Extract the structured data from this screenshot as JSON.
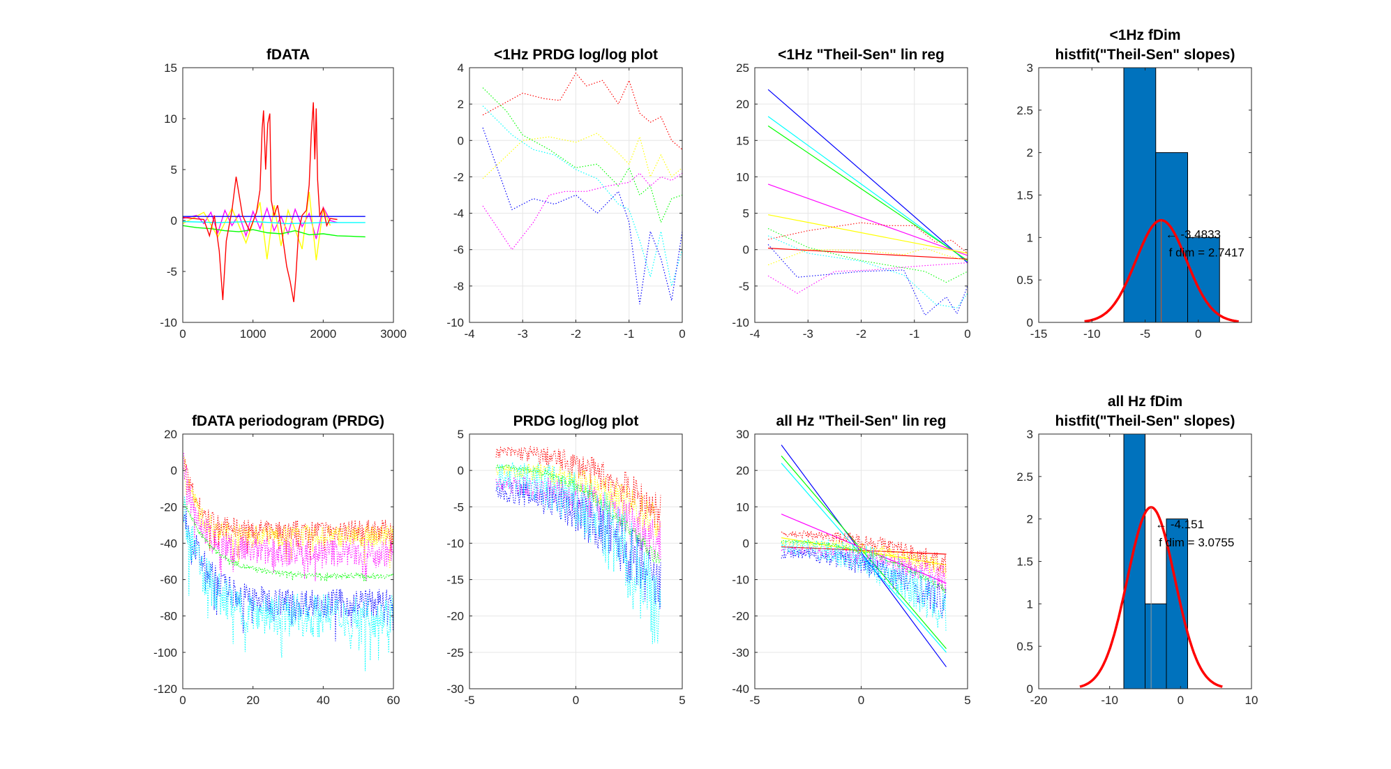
{
  "colors": {
    "red": "#ff0000",
    "yellow": "#ffff00",
    "green": "#00ff00",
    "cyan": "#00ffff",
    "blue": "#0000ff",
    "magenta": "#ff00ff",
    "bar": "#0072bd",
    "fit": "#ff0000",
    "grid": "#e6e6e6",
    "axis": "#262626"
  },
  "chart_data": [
    {
      "type": "line",
      "id": "p1",
      "title": [
        "fDATA"
      ],
      "xlim": [
        0,
        3000
      ],
      "ylim": [
        -10,
        15
      ],
      "xticks": [
        0,
        1000,
        2000,
        3000
      ],
      "yticks": [
        -10,
        -5,
        0,
        5,
        10,
        15
      ],
      "grid": false,
      "line_style": "solid",
      "series": [
        {
          "color": "magenta",
          "x": [
            0,
            200,
            300,
            400,
            500,
            600,
            700,
            800,
            900,
            1000,
            1100,
            1200,
            1300,
            1400,
            1500,
            1600,
            1700,
            1800,
            1900,
            2000,
            2100,
            2200
          ],
          "y": [
            0.2,
            0.5,
            -0.3,
            0.8,
            -1.2,
            1.0,
            -0.5,
            0.6,
            -1.5,
            0.9,
            -0.8,
            1.2,
            -1.0,
            0.4,
            -1.3,
            1.1,
            -0.6,
            0.7,
            -1.8,
            1.3,
            0.0,
            -0.2
          ]
        },
        {
          "color": "yellow",
          "x": [
            0,
            300,
            500,
            700,
            900,
            1100,
            1200,
            1300,
            1400,
            1500,
            1700,
            1800,
            1900,
            2000,
            2100
          ],
          "y": [
            -0.3,
            0.8,
            -1.6,
            1.2,
            -2.2,
            1.8,
            -3.8,
            1.5,
            -2.5,
            1.0,
            -2.8,
            2.8,
            -3.9,
            1.2,
            -0.5
          ]
        },
        {
          "color": "green",
          "x": [
            0,
            200,
            400,
            600,
            800,
            1000,
            1200,
            1400,
            1600,
            1800,
            2000,
            2200,
            2400,
            2600
          ],
          "y": [
            -0.5,
            -0.7,
            -0.8,
            -1.0,
            -1.1,
            -0.9,
            -1.2,
            -1.3,
            -1.0,
            -1.4,
            -1.3,
            -1.5,
            -1.55,
            -1.6
          ]
        },
        {
          "color": "cyan",
          "x": [
            0,
            500,
            1000,
            1500,
            2000,
            2600
          ],
          "y": [
            -0.1,
            -0.2,
            -0.1,
            -0.3,
            -0.2,
            -0.2
          ]
        },
        {
          "color": "blue",
          "x": [
            0,
            2600
          ],
          "y": [
            0.4,
            0.4
          ]
        },
        {
          "color": "red",
          "x": [
            0,
            150,
            300,
            380,
            450,
            520,
            570,
            620,
            700,
            760,
            850,
            950,
            1050,
            1100,
            1130,
            1150,
            1180,
            1210,
            1240,
            1260,
            1300,
            1350,
            1420,
            1480,
            1530,
            1580,
            1610,
            1650,
            1700,
            1760,
            1800,
            1830,
            1860,
            1880,
            1900,
            1920,
            1950,
            2000,
            2050,
            2100,
            2200
          ],
          "y": [
            0.3,
            0.2,
            0.1,
            -1.5,
            0.5,
            -3.0,
            -7.8,
            -2.0,
            1.0,
            4.3,
            0.5,
            -1.0,
            0.8,
            3.0,
            9.0,
            10.8,
            5.0,
            9.5,
            10.5,
            2.0,
            0.5,
            1.5,
            -1.5,
            -4.5,
            -6.0,
            -8.0,
            -5.5,
            -1.0,
            0.5,
            1.0,
            3.5,
            8.5,
            11.6,
            6.0,
            11.0,
            4.0,
            0.5,
            1.2,
            -0.5,
            0.2,
            0.1
          ]
        }
      ]
    },
    {
      "type": "line",
      "id": "p2",
      "title": [
        "<1Hz PRDG log/log plot"
      ],
      "xlim": [
        -4,
        0
      ],
      "ylim": [
        -10,
        4
      ],
      "xticks": [
        -4,
        -3,
        -2,
        -1,
        0
      ],
      "yticks": [
        -10,
        -8,
        -6,
        -4,
        -2,
        0,
        2,
        4
      ],
      "grid": true,
      "line_style": "dotted",
      "series": [
        {
          "color": "red",
          "x": [
            -3.75,
            -3.0,
            -2.6,
            -2.3,
            -2.0,
            -1.8,
            -1.5,
            -1.2,
            -1.0,
            -0.8,
            -0.6,
            -0.4,
            -0.2,
            0
          ],
          "y": [
            1.4,
            2.6,
            2.3,
            2.2,
            3.7,
            3.0,
            3.3,
            2.0,
            3.3,
            1.5,
            1.0,
            1.3,
            0.0,
            -0.5
          ]
        },
        {
          "color": "yellow",
          "x": [
            -3.75,
            -3.0,
            -2.5,
            -2.0,
            -1.6,
            -1.2,
            -1.0,
            -0.8,
            -0.6,
            -0.4,
            -0.2,
            0
          ],
          "y": [
            -2.1,
            0.0,
            0.2,
            -0.1,
            0.4,
            -0.7,
            -1.3,
            0.2,
            -2.0,
            -0.8,
            -2.0,
            -1.5
          ]
        },
        {
          "color": "green",
          "x": [
            -3.75,
            -3.3,
            -3.0,
            -2.5,
            -2.0,
            -1.6,
            -1.2,
            -1.0,
            -0.8,
            -0.6,
            -0.4,
            -0.2,
            0
          ],
          "y": [
            2.9,
            1.6,
            0.3,
            -0.5,
            -1.5,
            -1.3,
            -2.5,
            -1.5,
            -3.0,
            -2.5,
            -4.5,
            -3.2,
            -3.0
          ]
        },
        {
          "color": "cyan",
          "x": [
            -3.75,
            -3.2,
            -2.8,
            -2.4,
            -2.0,
            -1.6,
            -1.2,
            -1.0,
            -0.8,
            -0.6,
            -0.4,
            -0.2,
            0
          ],
          "y": [
            1.9,
            0.3,
            -0.5,
            -0.8,
            -1.6,
            -2.1,
            -3.5,
            -3.8,
            -5.5,
            -7.5,
            -5.0,
            -8.0,
            -6.0
          ]
        },
        {
          "color": "blue",
          "x": [
            -3.75,
            -3.2,
            -2.8,
            -2.4,
            -2.0,
            -1.6,
            -1.2,
            -1.0,
            -0.8,
            -0.6,
            -0.4,
            -0.2,
            0
          ],
          "y": [
            0.7,
            -3.8,
            -3.2,
            -3.5,
            -3.0,
            -4.0,
            -2.8,
            -4.5,
            -9.0,
            -5.0,
            -6.5,
            -8.8,
            -5.0
          ]
        },
        {
          "color": "magenta",
          "x": [
            -3.75,
            -3.2,
            -2.8,
            -2.5,
            -2.2,
            -1.8,
            -1.4,
            -1.0,
            -0.8,
            -0.6,
            -0.4,
            -0.2,
            0
          ],
          "y": [
            -3.6,
            -6.0,
            -4.5,
            -3.0,
            -2.8,
            -2.8,
            -2.5,
            -2.3,
            -1.8,
            -2.5,
            -2.0,
            -2.2,
            -1.8
          ]
        }
      ]
    },
    {
      "type": "line",
      "id": "p3",
      "title": [
        "<1Hz \"Theil-Sen\" lin reg"
      ],
      "xlim": [
        -4,
        0
      ],
      "ylim": [
        -10,
        25
      ],
      "xticks": [
        -4,
        -3,
        -2,
        -1,
        0
      ],
      "yticks": [
        -10,
        -5,
        0,
        5,
        10,
        15,
        20,
        25
      ],
      "grid": true,
      "line_style": "solid",
      "series": [
        {
          "color": "blue",
          "x": [
            -3.75,
            0
          ],
          "y": [
            22.0,
            -1.8
          ]
        },
        {
          "color": "cyan",
          "x": [
            -3.75,
            0
          ],
          "y": [
            18.3,
            -1.6
          ]
        },
        {
          "color": "green",
          "x": [
            -3.75,
            0
          ],
          "y": [
            17.0,
            -1.5
          ]
        },
        {
          "color": "magenta",
          "x": [
            -3.75,
            0
          ],
          "y": [
            9.0,
            -0.8
          ]
        },
        {
          "color": "yellow",
          "x": [
            -3.75,
            0
          ],
          "y": [
            4.8,
            -0.5
          ]
        },
        {
          "color": "red",
          "x": [
            -3.75,
            0
          ],
          "y": [
            0.2,
            -1.3
          ]
        }
      ],
      "dotted_series": [
        {
          "color": "red",
          "x": [
            -3.75,
            -3.0,
            -2.0,
            -1.5,
            -1.0,
            -0.6,
            -0.3,
            0
          ],
          "y": [
            1.4,
            2.6,
            3.7,
            3.3,
            3.3,
            1.0,
            1.3,
            -0.5
          ]
        },
        {
          "color": "yellow",
          "x": [
            -3.75,
            -3.0,
            -2.0,
            -1.2,
            -0.8,
            -0.4,
            0
          ],
          "y": [
            -2.1,
            0.0,
            -0.1,
            -0.7,
            0.2,
            -0.8,
            -1.5
          ]
        },
        {
          "color": "green",
          "x": [
            -3.75,
            -3.0,
            -2.0,
            -1.2,
            -0.8,
            -0.4,
            0
          ],
          "y": [
            2.9,
            0.3,
            -1.5,
            -2.5,
            -3.0,
            -4.5,
            -3.0
          ]
        },
        {
          "color": "cyan",
          "x": [
            -3.75,
            -3.0,
            -2.0,
            -1.2,
            -0.6,
            -0.2,
            0
          ],
          "y": [
            1.9,
            -0.5,
            -1.6,
            -3.5,
            -7.5,
            -8.0,
            -6.0
          ]
        },
        {
          "color": "blue",
          "x": [
            -3.75,
            -3.2,
            -2.0,
            -1.2,
            -0.8,
            -0.4,
            -0.2,
            0
          ],
          "y": [
            0.7,
            -3.8,
            -3.0,
            -2.8,
            -9.0,
            -6.5,
            -8.8,
            -5.0
          ]
        },
        {
          "color": "magenta",
          "x": [
            -3.75,
            -3.2,
            -2.5,
            -1.8,
            -1.0,
            -0.4,
            0
          ],
          "y": [
            -3.6,
            -6.0,
            -3.0,
            -2.8,
            -2.3,
            -2.0,
            -1.8
          ]
        }
      ]
    },
    {
      "type": "bar",
      "id": "p4",
      "title": [
        "<1Hz fDim",
        "histfit(\"Theil-Sen\" slopes)"
      ],
      "xlim": [
        -15,
        5
      ],
      "ylim": [
        0,
        3
      ],
      "xticks": [
        -15,
        -10,
        -5,
        0
      ],
      "yticks": [
        0,
        0.5,
        1,
        1.5,
        2,
        2.5,
        3
      ],
      "grid": false,
      "bins": [
        {
          "x0": -7.0,
          "x1": -4.0,
          "count": 3
        },
        {
          "x0": -4.0,
          "x1": -1.0,
          "count": 2
        },
        {
          "x0": -1.0,
          "x1": 2.0,
          "count": 1
        }
      ],
      "fit": {
        "mean": -3.4833,
        "sd": 2.38,
        "scale": 7.18,
        "x_from": -10.7,
        "x_to": 3.8
      },
      "marker_x": -3.4833,
      "annotation": [
        "← -3.4833",
        "f dim = 2.7417"
      ]
    },
    {
      "type": "line",
      "id": "p5",
      "title": [
        "fDATA periodogram (PRDG)"
      ],
      "xlim": [
        0,
        60
      ],
      "ylim": [
        -120,
        20
      ],
      "xticks": [
        0,
        20,
        40,
        60
      ],
      "yticks": [
        -120,
        -100,
        -80,
        -60,
        -40,
        -20,
        0,
        20
      ],
      "grid": false,
      "line_style": "dotted",
      "bands": [
        {
          "color": "red",
          "y0": 10,
          "yinf": -33,
          "k": 0.25,
          "amp": 6
        },
        {
          "color": "yellow",
          "y0": 8,
          "yinf": -36,
          "k": 0.25,
          "amp": 6
        },
        {
          "color": "magenta",
          "y0": 5,
          "yinf": -45,
          "k": 0.22,
          "amp": 8
        },
        {
          "color": "green",
          "y0": -15,
          "yinf": -58,
          "k": 0.12,
          "amp": 1.5
        },
        {
          "color": "blue",
          "y0": -20,
          "yinf": -73,
          "k": 0.15,
          "amp": 8
        },
        {
          "color": "cyan",
          "y0": -22,
          "yinf": -80,
          "k": 0.15,
          "amp": 12
        }
      ]
    },
    {
      "type": "line",
      "id": "p6",
      "title": [
        "PRDG log/log plot"
      ],
      "xlim": [
        -5,
        5
      ],
      "ylim": [
        -30,
        5
      ],
      "xticks": [
        -5,
        0,
        5
      ],
      "yticks": [
        -30,
        -25,
        -20,
        -15,
        -10,
        -5,
        0,
        5
      ],
      "grid": true,
      "line_style": "dotted",
      "bands": [
        {
          "color": "red",
          "a": 2.5,
          "b": -6.0,
          "amp": 1.2
        },
        {
          "color": "yellow",
          "a": 0.0,
          "b": -7.5,
          "amp": 1.2
        },
        {
          "color": "magenta",
          "a": -2.0,
          "b": -10.0,
          "amp": 1.5
        },
        {
          "color": "green",
          "a": 0.5,
          "b": -13.0,
          "amp": 0.5
        },
        {
          "color": "blue",
          "a": -3.0,
          "b": -17.0,
          "amp": 2.0
        },
        {
          "color": "cyan",
          "a": -1.0,
          "b": -19.0,
          "amp": 3.0
        }
      ]
    },
    {
      "type": "line",
      "id": "p7",
      "title": [
        "all Hz \"Theil-Sen\" lin reg"
      ],
      "xlim": [
        -5,
        5
      ],
      "ylim": [
        -40,
        30
      ],
      "xticks": [
        -5,
        0,
        5
      ],
      "yticks": [
        -40,
        -30,
        -20,
        -10,
        0,
        10,
        20,
        30
      ],
      "grid": true,
      "line_style": "solid",
      "series": [
        {
          "color": "blue",
          "x": [
            -3.75,
            4
          ],
          "y": [
            27,
            -34
          ]
        },
        {
          "color": "cyan",
          "x": [
            -3.75,
            4
          ],
          "y": [
            22,
            -30
          ]
        },
        {
          "color": "green",
          "x": [
            -3.75,
            4
          ],
          "y": [
            24,
            -29
          ]
        },
        {
          "color": "magenta",
          "x": [
            -3.75,
            4
          ],
          "y": [
            8,
            -11
          ]
        },
        {
          "color": "yellow",
          "x": [
            -3.75,
            4
          ],
          "y": [
            1.5,
            -6
          ]
        },
        {
          "color": "red",
          "x": [
            -3.75,
            4
          ],
          "y": [
            -1,
            -3
          ]
        }
      ],
      "bands": [
        {
          "color": "red",
          "a": 2.5,
          "b": -6.0,
          "amp": 1.2
        },
        {
          "color": "yellow",
          "a": 0.0,
          "b": -7.5,
          "amp": 1.2
        },
        {
          "color": "magenta",
          "a": -2.0,
          "b": -10.0,
          "amp": 1.5
        },
        {
          "color": "green",
          "a": 0.5,
          "b": -13.0,
          "amp": 0.5
        },
        {
          "color": "blue",
          "a": -3.0,
          "b": -17.0,
          "amp": 2.0
        },
        {
          "color": "cyan",
          "a": -1.0,
          "b": -19.0,
          "amp": 3.0
        }
      ]
    },
    {
      "type": "bar",
      "id": "p8",
      "title": [
        "all Hz fDim",
        "histfit(\"Theil-Sen\" slopes)"
      ],
      "xlim": [
        -20,
        10
      ],
      "ylim": [
        0,
        3
      ],
      "xticks": [
        -20,
        -10,
        0,
        10
      ],
      "yticks": [
        0,
        0.5,
        1,
        1.5,
        2,
        2.5,
        3
      ],
      "grid": false,
      "bins": [
        {
          "x0": -8.0,
          "x1": -5.0,
          "count": 3
        },
        {
          "x0": -5.0,
          "x1": -2.0,
          "count": 1
        },
        {
          "x0": -2.0,
          "x1": 1.0,
          "count": 2
        }
      ],
      "fit": {
        "mean": -4.151,
        "sd": 3.35,
        "scale": 17.95,
        "x_from": -14.2,
        "x_to": 5.9
      },
      "marker_x": -4.151,
      "annotation": [
        "← -4.151",
        "f dim = 3.0755"
      ]
    }
  ]
}
